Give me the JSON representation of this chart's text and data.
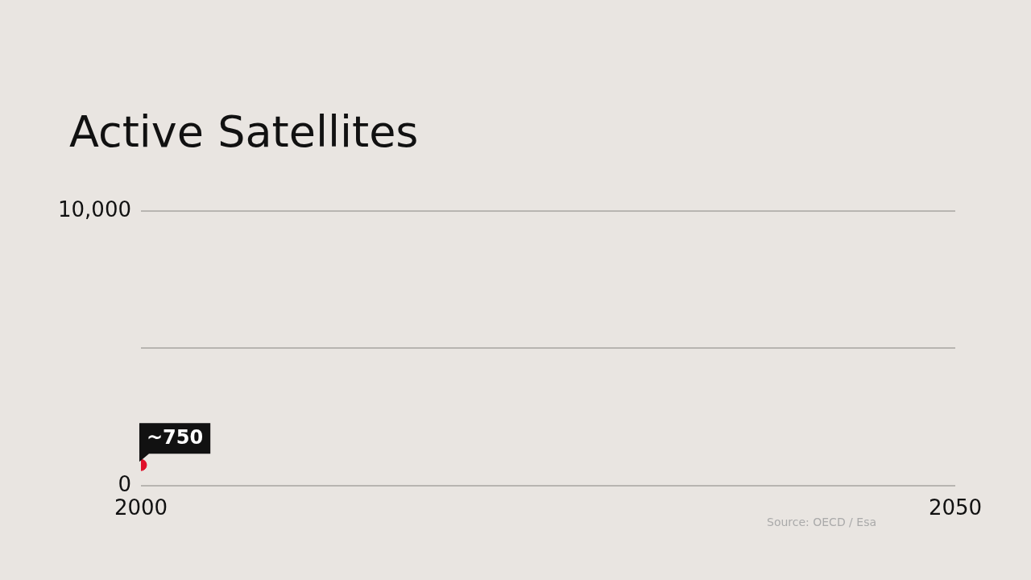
{
  "chart_data": {
    "type": "scatter",
    "title": "Active Satellites",
    "x": [
      2000
    ],
    "values": [
      750
    ],
    "value_labels": [
      "~750"
    ],
    "color": "#e0102a",
    "marker": "circle",
    "xlim": [
      2000,
      2050
    ],
    "xticks": [
      2000,
      2050
    ],
    "ylim": [
      0,
      10000
    ],
    "yticks": [
      0,
      {
        "value": 5000,
        "label": null
      },
      {
        "value": 10000,
        "label": "10,000"
      }
    ],
    "grid": "y",
    "annotations": [
      "Source: OECD / Esa"
    ]
  }
}
